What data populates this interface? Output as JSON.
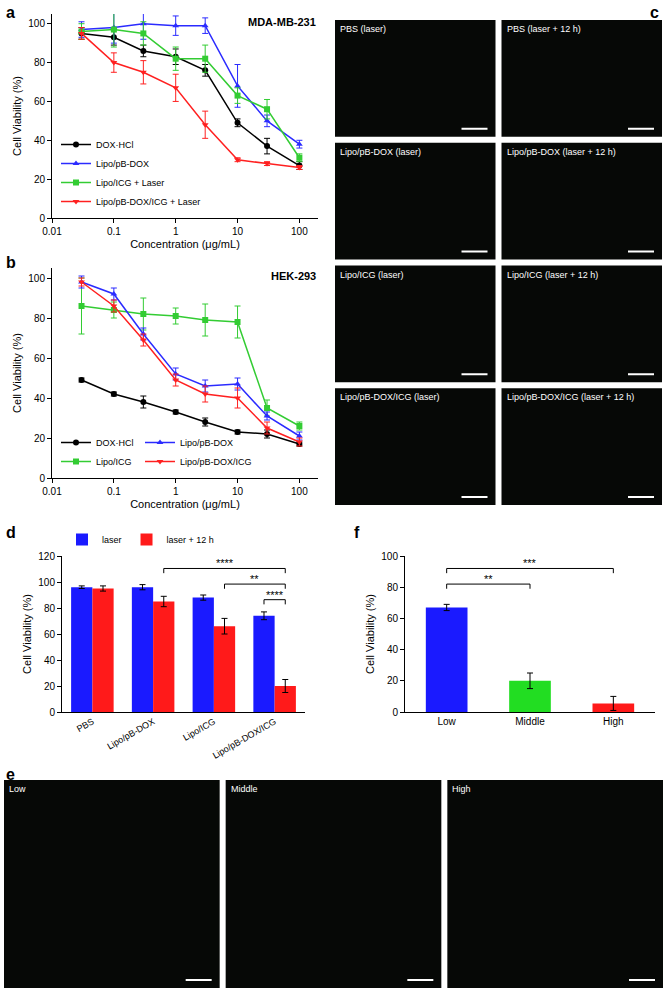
{
  "chart_data": [
    {
      "panel": "a",
      "type": "line",
      "title": "MDA-MB-231",
      "x_label": "Concentration (μg/mL)",
      "y_label": "Cell Viability (%)",
      "log": "x",
      "x": [
        0.03,
        0.1,
        0.3,
        1,
        3,
        10,
        30,
        100
      ],
      "xlim": [
        0.01,
        200
      ],
      "xticks": [
        0.01,
        0.1,
        1,
        10,
        100
      ],
      "ylim": [
        0,
        105
      ],
      "yticks": [
        0,
        20,
        40,
        60,
        80,
        100
      ],
      "legend": "lower left",
      "series": [
        {
          "name": "DOX·HCl",
          "color": "#000000",
          "marker": "circle",
          "values": [
            95,
            93,
            86,
            83,
            76,
            49,
            37,
            27
          ],
          "errors": [
            3,
            4,
            3,
            4,
            3,
            2,
            4,
            2
          ]
        },
        {
          "name": "Lipo/pB-DOX",
          "color": "#2b2bff",
          "marker": "triangle-up",
          "values": [
            97,
            98,
            100,
            99,
            99,
            68,
            50,
            38
          ],
          "errors": [
            4,
            8,
            8,
            5,
            4,
            11,
            3,
            2
          ]
        },
        {
          "name": "Lipo/ICG + Laser",
          "color": "#33cc33",
          "marker": "square",
          "values": [
            96,
            97,
            95,
            82,
            82,
            63,
            56,
            31
          ],
          "errors": [
            4,
            9,
            6,
            6,
            7,
            4,
            5,
            2
          ]
        },
        {
          "name": "Lipo/pB-DOX/ICG + Laser",
          "color": "#ff2020",
          "marker": "triangle-down",
          "values": [
            95,
            80,
            75,
            67,
            48,
            30,
            28,
            26
          ],
          "errors": [
            3,
            5,
            6,
            7,
            7,
            1,
            1,
            1
          ]
        }
      ]
    },
    {
      "panel": "b",
      "type": "line",
      "title": "HEK-293",
      "x_label": "Concentration (μg/mL)",
      "y_label": "Cell Viability (%)",
      "log": "x",
      "x": [
        0.03,
        0.1,
        0.3,
        1,
        3,
        10,
        30,
        100
      ],
      "xlim": [
        0.01,
        200
      ],
      "xticks": [
        0.01,
        0.1,
        1,
        10,
        100
      ],
      "ylim": [
        0,
        105
      ],
      "yticks": [
        0,
        20,
        40,
        60,
        80,
        100
      ],
      "legend": "lower left",
      "series": [
        {
          "name": "DOX·HCl",
          "color": "#000000",
          "marker": "circle",
          "values": [
            49,
            42,
            38,
            33,
            28,
            23,
            22,
            17
          ],
          "errors": [
            1,
            1,
            3,
            1,
            2,
            1,
            2,
            1
          ]
        },
        {
          "name": "Lipo/ICG",
          "color": "#33cc33",
          "marker": "square",
          "values": [
            86,
            84,
            82,
            81,
            79,
            78,
            35,
            26
          ],
          "errors": [
            14,
            4,
            8,
            4,
            8,
            8,
            4,
            2
          ]
        },
        {
          "name": "Lipo/pB-DOX",
          "color": "#2b2bff",
          "marker": "triangle-up",
          "values": [
            98,
            92,
            72,
            52,
            46,
            47,
            31,
            21
          ],
          "errors": [
            3,
            3,
            3,
            3,
            3,
            3,
            2,
            2
          ]
        },
        {
          "name": "Lipo/pB-DOX/ICG",
          "color": "#ff2020",
          "marker": "triangle-down",
          "values": [
            98,
            86,
            69,
            49,
            42,
            40,
            25,
            18
          ],
          "errors": [
            2,
            3,
            3,
            3,
            4,
            5,
            3,
            2
          ]
        }
      ]
    },
    {
      "panel": "d",
      "type": "bar",
      "y_label": "Cell Viability (%)",
      "categories": [
        "PBS",
        "Lipo/pB-DOX",
        "Lipo/ICG",
        "Lipo/pB-DOX/ICG"
      ],
      "ylim": [
        0,
        120
      ],
      "yticks": [
        0,
        20,
        40,
        60,
        80,
        100,
        120
      ],
      "legend": "upper left",
      "series": [
        {
          "name": "laser",
          "color": "#1a1aff",
          "values": [
            96,
            96,
            88,
            74
          ],
          "errors": [
            1,
            2,
            2,
            3
          ]
        },
        {
          "name": "laser + 12 h",
          "color": "#ff1a1a",
          "values": [
            95,
            85,
            66,
            20
          ],
          "errors": [
            2,
            4,
            6,
            5
          ]
        }
      ],
      "significance": [
        {
          "from": {
            "category": "Lipo/pB-DOX",
            "series": "laser + 12 h"
          },
          "to": {
            "category": "Lipo/pB-DOX/ICG",
            "series": "laser + 12 h"
          },
          "label": "****"
        },
        {
          "from": {
            "category": "Lipo/ICG",
            "series": "laser + 12 h"
          },
          "to": {
            "category": "Lipo/pB-DOX/ICG",
            "series": "laser + 12 h"
          },
          "label": "**"
        },
        {
          "from": {
            "category": "Lipo/pB-DOX/ICG",
            "series": "laser"
          },
          "to": {
            "category": "Lipo/pB-DOX/ICG",
            "series": "laser + 12 h"
          },
          "label": "****"
        }
      ]
    },
    {
      "panel": "f",
      "type": "bar",
      "y_label": "Cell Viability (%)",
      "categories": [
        "Low",
        "Middle",
        "High"
      ],
      "values": [
        67,
        20,
        5.5
      ],
      "errors": [
        2,
        5,
        4.5
      ],
      "colors": [
        "#1a1aff",
        "#22dd22",
        "#ff1a1a"
      ],
      "ylim": [
        0,
        100
      ],
      "yticks": [
        0,
        20,
        40,
        60,
        80,
        100
      ],
      "significance": [
        {
          "from": {
            "category": "Low"
          },
          "to": {
            "category": "High"
          },
          "label": "***"
        },
        {
          "from": {
            "category": "Low"
          },
          "to": {
            "category": "Middle"
          },
          "label": "**"
        }
      ]
    }
  ],
  "image_panels": [
    {
      "panel": "c",
      "tiles": [
        "PBS (laser)",
        "PBS (laser + 12 h)",
        "Lipo/pB-DOX (laser)",
        "Lipo/pB-DOX (laser + 12 h)",
        "Lipo/ICG (laser)",
        "Lipo/ICG (laser + 12 h)",
        "Lipo/pB-DOX/ICG (laser)",
        "Lipo/pB-DOX/ICG (laser + 12 h)"
      ]
    },
    {
      "panel": "e",
      "tiles": [
        "Low",
        "Middle",
        "High"
      ]
    }
  ]
}
